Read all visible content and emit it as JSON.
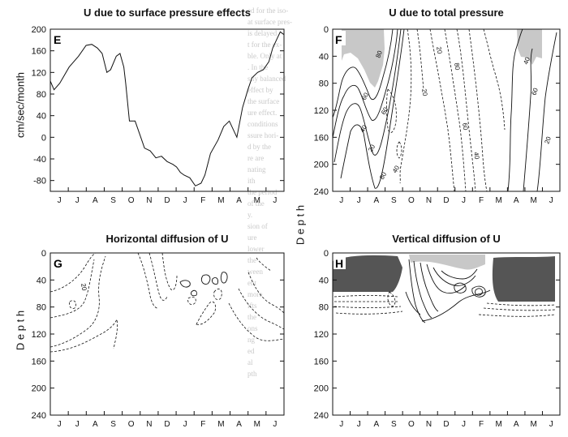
{
  "colors": {
    "ink": "#111111",
    "light_fill": "#c8c8c8",
    "dark_fill": "#555555",
    "bleed_text": "#c9c9c9"
  },
  "months": [
    "J",
    "J",
    "A",
    "S",
    "O",
    "N",
    "D",
    "J",
    "F",
    "M",
    "A",
    "M",
    "J"
  ],
  "yaxis_shared_label": "cm/sec/month",
  "depth_label": "D e p t h",
  "panels": {
    "E": {
      "letter": "E",
      "title": "U due to surface pressure effects",
      "yticks": [
        "200",
        "160",
        "120",
        "80",
        "40",
        "0",
        "-40",
        "-80"
      ]
    },
    "F": {
      "letter": "F",
      "title": "U due to total pressure",
      "yticks": [
        "0",
        "40",
        "80",
        "120",
        "160",
        "200",
        "240"
      ],
      "contour_labels": [
        "20",
        "80",
        "60",
        "40",
        "80",
        "60",
        "40",
        "20",
        "60",
        "80",
        "40",
        "20",
        "40",
        "60",
        "20"
      ]
    },
    "G": {
      "letter": "G",
      "title": "Horizontal diffusion of U",
      "yticks": [
        "0",
        "40",
        "80",
        "120",
        "160",
        "200",
        "240"
      ],
      "contour_labels": [
        "20"
      ]
    },
    "H": {
      "letter": "H",
      "title": "Vertical diffusion of U",
      "yticks": [
        "0",
        "40",
        "80",
        "120",
        "160",
        "200",
        "240"
      ]
    }
  },
  "chart_data": [
    {
      "type": "line",
      "panel": "E",
      "title": "U due to surface pressure effects",
      "ylabel": "cm/sec/month",
      "ylim": [
        -100,
        200
      ],
      "categories": [
        "J",
        "J",
        "A",
        "S",
        "O",
        "N",
        "D",
        "J",
        "F",
        "M",
        "A",
        "M",
        "J"
      ],
      "x": [
        0,
        0.2,
        0.5,
        1,
        1.5,
        1.9,
        2.2,
        2.5,
        2.75,
        3,
        3.2,
        3.5,
        3.7,
        3.9,
        4,
        4.2,
        4.5,
        4.8,
        5,
        5.3,
        5.6,
        5.9,
        6.2,
        6.5,
        6.7,
        6.9,
        7.1,
        7.4,
        7.7,
        8,
        8.2,
        8.5,
        8.9,
        9.2,
        9.5,
        9.9,
        10.2,
        10.5,
        10.7,
        11,
        11.3,
        11.6,
        11.8,
        12,
        12.2,
        12.4
      ],
      "values": [
        104,
        88,
        100,
        130,
        150,
        170,
        172,
        165,
        155,
        120,
        125,
        150,
        155,
        130,
        100,
        30,
        30,
        0,
        -20,
        -25,
        -38,
        -35,
        -45,
        -50,
        -55,
        -65,
        -70,
        -75,
        -90,
        -85,
        -70,
        -30,
        -5,
        20,
        30,
        0,
        55,
        90,
        110,
        120,
        125,
        140,
        165,
        180,
        195,
        190
      ]
    },
    {
      "type": "heatmap",
      "panel": "F",
      "title": "U due to total pressure",
      "ylabel": "Depth",
      "ylim": [
        240,
        0
      ],
      "categories": [
        "J",
        "J",
        "A",
        "S",
        "O",
        "N",
        "D",
        "J",
        "F",
        "M",
        "A",
        "M",
        "J"
      ],
      "contour_levels": [
        -80,
        -60,
        -40,
        -20,
        20,
        40,
        60,
        80
      ]
    },
    {
      "type": "heatmap",
      "panel": "G",
      "title": "Horizontal diffusion of U",
      "ylabel": "Depth",
      "ylim": [
        240,
        0
      ],
      "categories": [
        "J",
        "J",
        "A",
        "S",
        "O",
        "N",
        "D",
        "J",
        "F",
        "M",
        "A",
        "M",
        "J"
      ],
      "contour_levels": [
        -20,
        20
      ]
    },
    {
      "type": "heatmap",
      "panel": "H",
      "title": "Vertical diffusion of U",
      "ylim": [
        240,
        0
      ],
      "categories": [
        "J",
        "J",
        "A",
        "S",
        "O",
        "N",
        "D",
        "J",
        "F",
        "M",
        "A",
        "M",
        "J"
      ]
    }
  ]
}
